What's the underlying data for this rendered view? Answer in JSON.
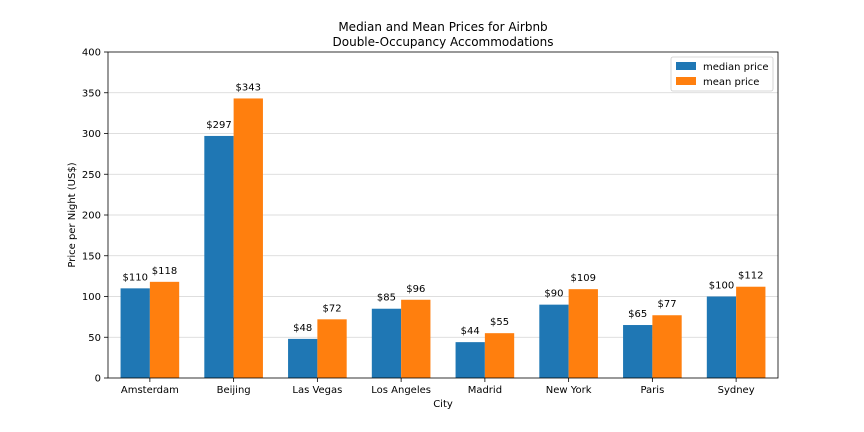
{
  "chart_data": {
    "type": "bar",
    "title_lines": [
      "Median and Mean Prices for Airbnb",
      "Double-Occupancy Accommodations"
    ],
    "xlabel": "City",
    "ylabel": "Price per Night (US$)",
    "categories": [
      "Amsterdam",
      "Beijing",
      "Las Vegas",
      "Los Angeles",
      "Madrid",
      "New York",
      "Paris",
      "Sydney"
    ],
    "series": [
      {
        "name": "median price",
        "color": "#1f77b4",
        "values": [
          110,
          297,
          48,
          85,
          44,
          90,
          65,
          100
        ],
        "labels": [
          "$110",
          "$297",
          "$48",
          "$85",
          "$44",
          "$90",
          "$65",
          "$100"
        ]
      },
      {
        "name": "mean price",
        "color": "#ff7f0e",
        "values": [
          118,
          343,
          72,
          96,
          55,
          109,
          77,
          112
        ],
        "labels": [
          "$118",
          "$343",
          "$72",
          "$96",
          "$55",
          "$109",
          "$77",
          "$112"
        ]
      }
    ],
    "ylim": [
      0,
      400
    ],
    "yticks": [
      0,
      50,
      100,
      150,
      200,
      250,
      300,
      350,
      400
    ],
    "ytick_labels": [
      "0",
      "50",
      "100",
      "150",
      "200",
      "250",
      "300",
      "350",
      "400"
    ],
    "grid": "horizontal",
    "legend_position": "top-right"
  }
}
